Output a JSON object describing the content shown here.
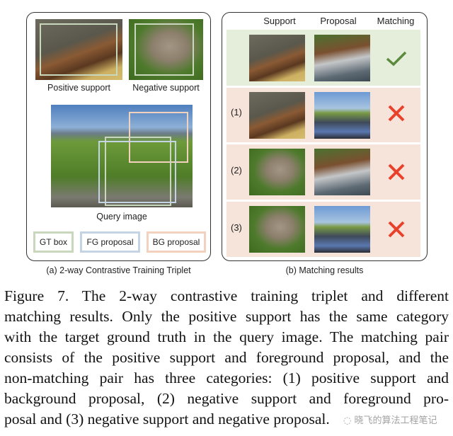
{
  "panel_a": {
    "positive_support_label": "Positive support",
    "negative_support_label": "Negative support",
    "query_label": "Query image",
    "legend": [
      {
        "label": "GT box",
        "color": "#c9d8bd"
      },
      {
        "label": "FG proposal",
        "color": "#c5d4e4"
      },
      {
        "label": "BG proposal",
        "color": "#f2d2bf"
      }
    ],
    "caption": "(a) 2-way Contrastive Training Triplet"
  },
  "panel_b": {
    "headers": {
      "support": "Support",
      "proposal": "Proposal",
      "matching": "Matching"
    },
    "rows": [
      {
        "label": "",
        "support": "positive support",
        "proposal": "foreground proposal",
        "matching": "check-icon",
        "color": "#e4eedb"
      },
      {
        "label": "(1)",
        "support": "positive support",
        "proposal": "background proposal",
        "matching": "cross-icon",
        "color": "#f6e4da"
      },
      {
        "label": "(2)",
        "support": "negative support",
        "proposal": "foreground proposal",
        "matching": "cross-icon",
        "color": "#f6e4da"
      },
      {
        "label": "(3)",
        "support": "negative support",
        "proposal": "background proposal",
        "matching": "cross-icon",
        "color": "#f6e4da"
      }
    ],
    "check_color": "#5a8a3c",
    "cross_color": "#e8412c",
    "caption": "(b) Matching results"
  },
  "figure_caption_lines": [
    "Figure 7. The 2-way contrastive training triplet and different",
    "matching results. Only the positive support has the same category",
    "with the target ground truth in the query image. The matching pair",
    "consists of the positive support and foreground proposal, and the",
    "non-matching pair has three categories: (1) positive support and",
    "background proposal, (2) negative support and foreground pro-",
    "posal and (3) negative support and negative proposal."
  ],
  "watermark": "晓飞的算法工程笔记"
}
